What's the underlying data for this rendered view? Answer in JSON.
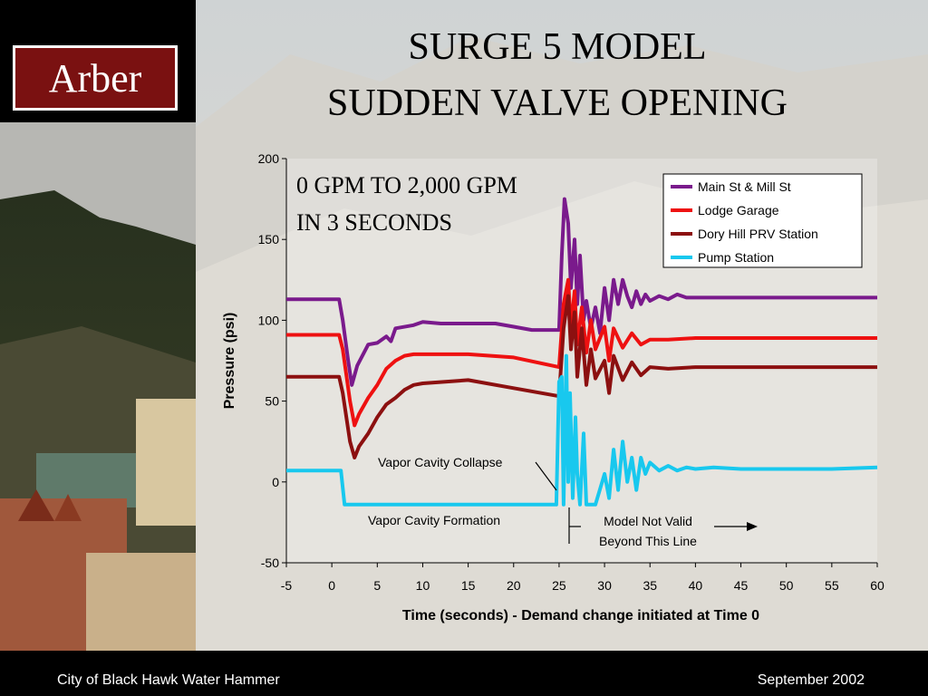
{
  "slide": {
    "logo": "Arber",
    "title_line1": "SURGE 5 MODEL",
    "title_line2": "SUDDEN VALVE OPENING",
    "footer_left": "City of Black Hawk Water Hammer",
    "footer_right": "September 2002"
  },
  "chart_data": {
    "type": "line",
    "xlabel": "Time (seconds) - Demand change initiated at Time 0",
    "ylabel": "Pressure (psi)",
    "xlim": [
      -5,
      60
    ],
    "ylim": [
      -50,
      200
    ],
    "xticks": [
      "-5",
      "0",
      "5",
      "10",
      "15",
      "20",
      "25",
      "30",
      "35",
      "40",
      "45",
      "50",
      "55",
      "60"
    ],
    "yticks": [
      "200",
      "150",
      "100",
      "50",
      "0",
      "-50"
    ],
    "legend_position": "top-right",
    "grid": false,
    "annotations": {
      "inset_line1": "0 GPM TO 2,000 GPM",
      "inset_line2": "IN 3 SECONDS",
      "vapor_collapse": "Vapor Cavity Collapse",
      "vapor_formation": "Vapor Cavity Formation",
      "model_not_valid_line1": "Model Not Valid",
      "model_not_valid_line2": "Beyond This Line"
    },
    "series": [
      {
        "name": "Main St & Mill St",
        "color": "#7a1a8c",
        "x": [
          -5,
          0.8,
          1.2,
          1.8,
          2.2,
          2.8,
          4,
          5,
          6,
          6.5,
          7,
          9,
          10,
          12,
          15,
          18,
          20,
          22,
          24,
          25,
          25.3,
          25.6,
          26,
          26.3,
          26.7,
          27,
          27.3,
          27.7,
          28,
          28.5,
          29,
          29.5,
          30,
          30.5,
          31,
          31.5,
          32,
          32.5,
          33,
          33.5,
          34,
          34.5,
          35,
          36,
          37,
          38,
          39,
          40,
          45,
          50,
          55,
          60
        ],
        "y": [
          113,
          113,
          100,
          75,
          60,
          72,
          85,
          86,
          90,
          87,
          95,
          97,
          99,
          98,
          98,
          98,
          96,
          94,
          94,
          94,
          140,
          175,
          160,
          120,
          150,
          110,
          140,
          100,
          112,
          95,
          108,
          92,
          120,
          100,
          125,
          110,
          125,
          115,
          108,
          118,
          110,
          116,
          112,
          115,
          113,
          116,
          114,
          114,
          114,
          114,
          114,
          114
        ]
      },
      {
        "name": "Lodge Garage",
        "color": "#ee1111",
        "x": [
          -5,
          0.8,
          1.2,
          2,
          2.5,
          3,
          4,
          5,
          6,
          7,
          8,
          9,
          10,
          15,
          20,
          25,
          25.5,
          26,
          26.3,
          26.7,
          27,
          27.5,
          28,
          28.5,
          29,
          30,
          30.5,
          31,
          32,
          33,
          34,
          35,
          37,
          40,
          45,
          50,
          55,
          60
        ],
        "y": [
          91,
          91,
          82,
          50,
          35,
          42,
          52,
          60,
          70,
          75,
          78,
          79,
          79,
          79,
          77,
          71,
          110,
          125,
          95,
          118,
          85,
          108,
          80,
          100,
          82,
          96,
          75,
          95,
          83,
          92,
          85,
          88,
          88,
          89,
          89,
          89,
          89,
          89
        ]
      },
      {
        "name": "Dory Hill PRV Station",
        "color": "#8c1010",
        "x": [
          -5,
          0.8,
          1.2,
          2,
          2.5,
          3,
          4,
          5,
          6,
          7,
          8,
          9,
          10,
          15,
          20,
          25,
          25.5,
          26,
          26.3,
          26.7,
          27,
          27.5,
          28,
          28.5,
          29,
          30,
          30.5,
          31,
          32,
          33,
          34,
          35,
          37,
          40,
          45,
          50,
          55,
          60
        ],
        "y": [
          65,
          65,
          55,
          25,
          15,
          22,
          30,
          40,
          48,
          52,
          57,
          60,
          61,
          63,
          58,
          53,
          95,
          115,
          82,
          105,
          65,
          95,
          60,
          82,
          64,
          75,
          55,
          78,
          63,
          74,
          66,
          71,
          70,
          71,
          71,
          71,
          71,
          71
        ]
      },
      {
        "name": "Pump Station",
        "color": "#18c8ee",
        "x": [
          -5,
          1,
          1.4,
          5,
          10,
          15,
          20,
          24.7,
          25,
          25.3,
          25.5,
          25.8,
          26,
          26.2,
          26.5,
          26.8,
          27,
          27.3,
          27.7,
          28,
          28.5,
          29,
          30,
          30.5,
          31,
          31.5,
          32,
          32.5,
          33,
          33.5,
          34,
          34.5,
          35,
          36,
          37,
          38,
          39,
          40,
          42,
          45,
          50,
          55,
          60
        ],
        "y": [
          7,
          7,
          -14,
          -14,
          -14,
          -14,
          -14,
          -14,
          62,
          65,
          -14,
          78,
          0,
          55,
          -10,
          40,
          5,
          -14,
          30,
          -14,
          -14,
          -14,
          5,
          -10,
          20,
          -5,
          25,
          0,
          15,
          -5,
          15,
          5,
          12,
          7,
          10,
          7,
          9,
          8,
          9,
          8,
          8,
          8,
          9
        ]
      }
    ]
  }
}
